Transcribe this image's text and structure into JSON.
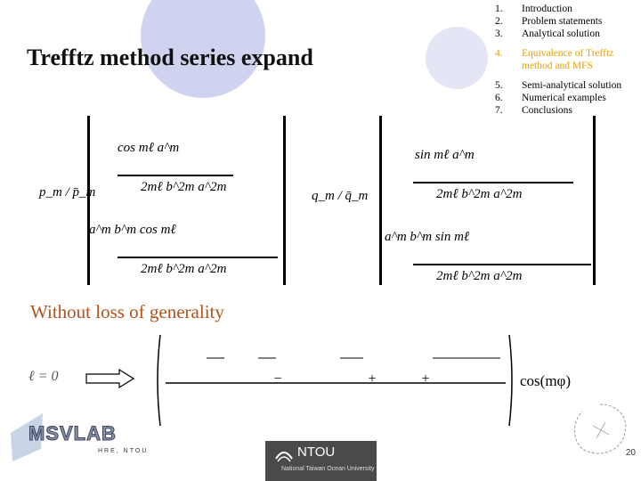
{
  "slide": {
    "title": "Trefftz method series expand",
    "subtitle": "Without loss of generality",
    "page_number": "20"
  },
  "toc": [
    {
      "num": "1.",
      "label": "Introduction",
      "active": false
    },
    {
      "num": "2.",
      "label": "Problem statements",
      "active": false
    },
    {
      "num": "3.",
      "label": "Analytical solution",
      "active": false
    },
    {
      "num": "4.",
      "label": "Equivalence of Trefftz method and MFS",
      "active": true
    },
    {
      "num": "5.",
      "label": "Semi-analytical solution",
      "active": false
    },
    {
      "num": "6.",
      "label": "Numerical examples",
      "active": false
    },
    {
      "num": "7.",
      "label": "Conclusions",
      "active": false
    }
  ],
  "formulas": {
    "left_vector": "p_m / p̄_m",
    "right_vector": "q_m / q̄_m",
    "cos_term": "cos mℓ a^m",
    "sin_term": "sin mℓ a^m",
    "denominator": "2mℓ b^2m  a^2m",
    "lower_cos": "a^m b^m cos mℓ",
    "lower_sin": "a^m b^m sin mℓ",
    "condition": "ℓ = 0",
    "result": "cos(mφ)"
  },
  "logos": {
    "left": "MSVLAB",
    "left_sub": "HRE, NTOU",
    "center": "NTOU",
    "center_sub": "National Taiwan Ocean University"
  }
}
